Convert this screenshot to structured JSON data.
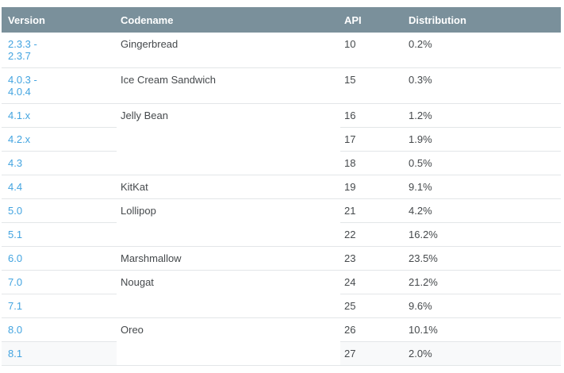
{
  "table": {
    "columns": [
      {
        "key": "version",
        "label": "Version"
      },
      {
        "key": "codename",
        "label": "Codename"
      },
      {
        "key": "api",
        "label": "API"
      },
      {
        "key": "distribution",
        "label": "Distribution"
      }
    ],
    "rows": [
      {
        "version": "2.3.3 -\n2.3.7",
        "codename": "Gingerbread",
        "codename_rowspan": 1,
        "api": "10",
        "distribution": "0.2%"
      },
      {
        "version": "4.0.3 -\n4.0.4",
        "codename": "Ice Cream Sandwich",
        "codename_rowspan": 1,
        "api": "15",
        "distribution": "0.3%"
      },
      {
        "version": "4.1.x",
        "codename": "Jelly Bean",
        "codename_rowspan": 3,
        "api": "16",
        "distribution": "1.2%"
      },
      {
        "version": "4.2.x",
        "api": "17",
        "distribution": "1.9%"
      },
      {
        "version": "4.3",
        "api": "18",
        "distribution": "0.5%"
      },
      {
        "version": "4.4",
        "codename": "KitKat",
        "codename_rowspan": 1,
        "api": "19",
        "distribution": "9.1%"
      },
      {
        "version": "5.0",
        "codename": "Lollipop",
        "codename_rowspan": 2,
        "api": "21",
        "distribution": "4.2%"
      },
      {
        "version": "5.1",
        "api": "22",
        "distribution": "16.2%"
      },
      {
        "version": "6.0",
        "codename": "Marshmallow",
        "codename_rowspan": 1,
        "api": "23",
        "distribution": "23.5%"
      },
      {
        "version": "7.0",
        "codename": "Nougat",
        "codename_rowspan": 2,
        "api": "24",
        "distribution": "21.2%"
      },
      {
        "version": "7.1",
        "api": "25",
        "distribution": "9.6%"
      },
      {
        "version": "8.0",
        "codename": "Oreo",
        "codename_rowspan": 2,
        "api": "26",
        "distribution": "10.1%"
      },
      {
        "version": "8.1",
        "api": "27",
        "distribution": "2.0%",
        "highlighted": true
      }
    ],
    "colors": {
      "header_background": "#7a909b",
      "header_text": "#ffffff",
      "version_link": "#43a4e0",
      "body_text": "#45494c",
      "row_separator": "#e3e6e8",
      "highlighted_row_background": "#f8f9fa"
    }
  }
}
